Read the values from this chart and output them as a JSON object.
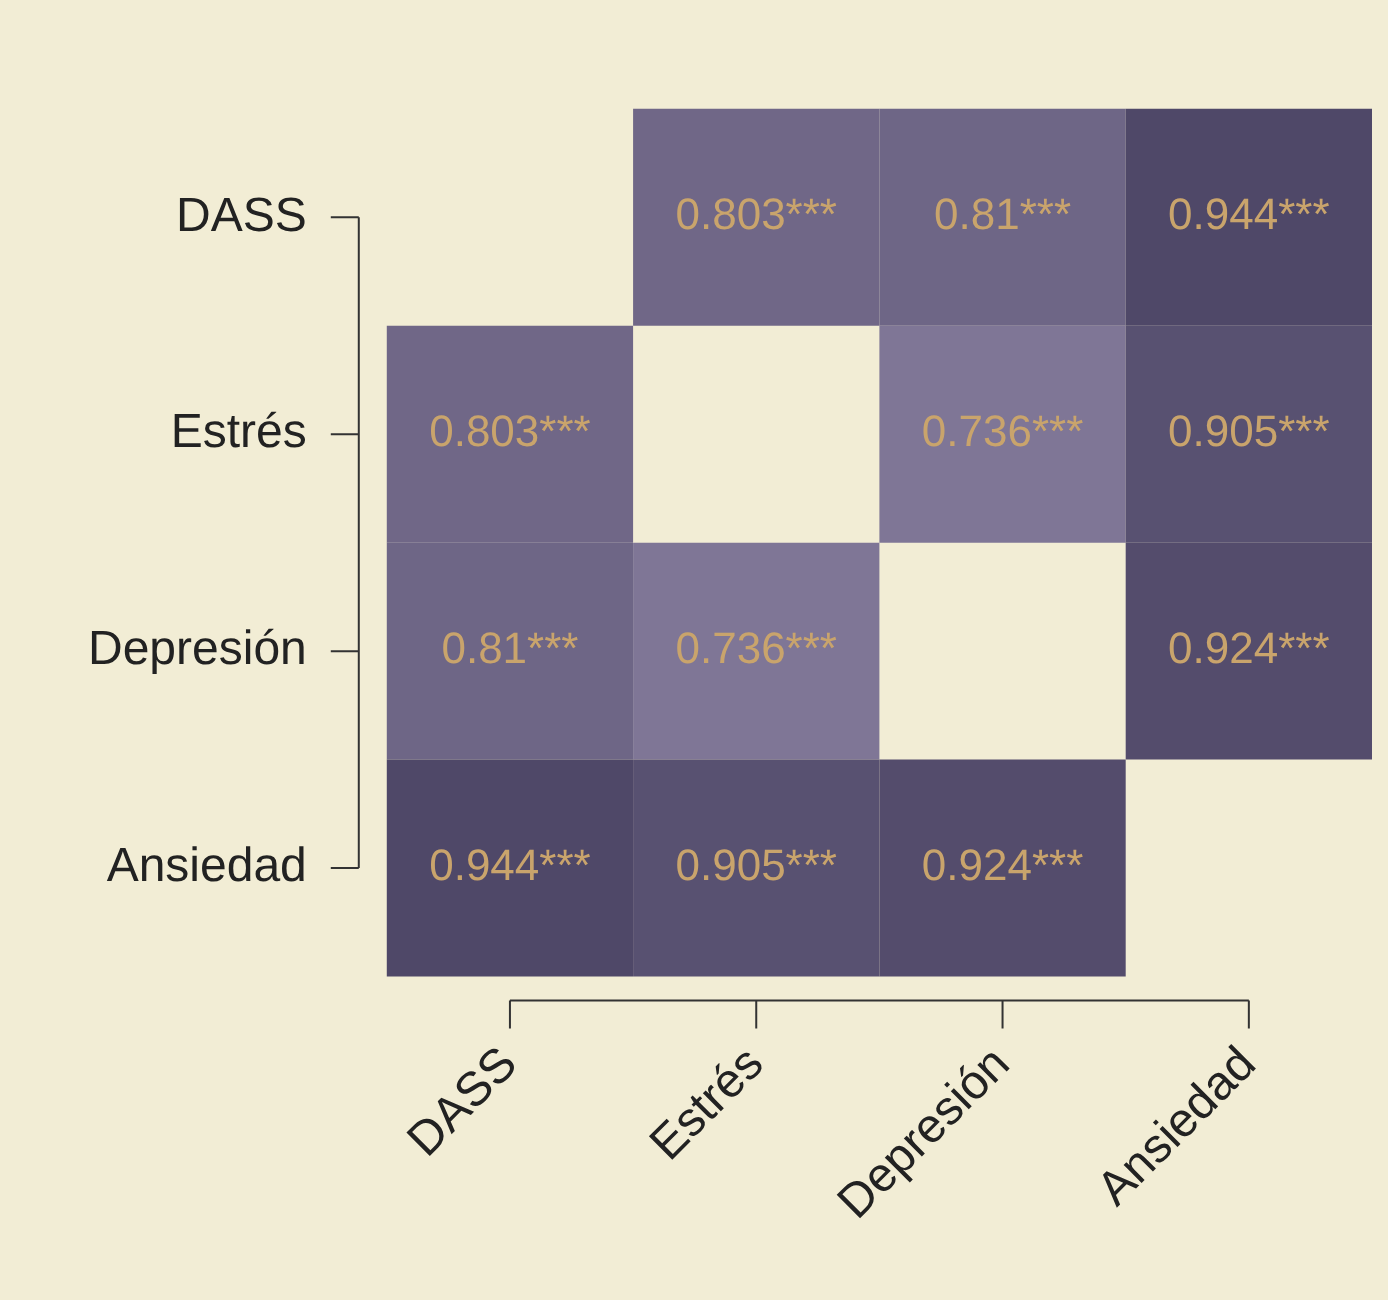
{
  "chart_data": {
    "type": "heatmap",
    "categories": [
      "DASS",
      "Estrés",
      "Depresión",
      "Ansiedad"
    ],
    "y_categories": [
      "DASS",
      "Estrés",
      "Depresión",
      "Ansiedad"
    ],
    "cells": [
      [
        null,
        0.803,
        0.81,
        0.944
      ],
      [
        0.803,
        null,
        0.736,
        0.905
      ],
      [
        0.81,
        0.736,
        null,
        0.924
      ],
      [
        0.944,
        0.905,
        0.924,
        null
      ]
    ],
    "cell_labels": [
      [
        null,
        "0.803***",
        "0.81***",
        "0.944***"
      ],
      [
        "0.803***",
        null,
        "0.736***",
        "0.905***"
      ],
      [
        "0.81***",
        "0.736***",
        null,
        "0.924***"
      ],
      [
        "0.944***",
        "0.905***",
        "0.924***",
        null
      ]
    ],
    "colors": [
      "#7f7696",
      "#4f4868"
    ],
    "grid": false,
    "legend": false
  }
}
